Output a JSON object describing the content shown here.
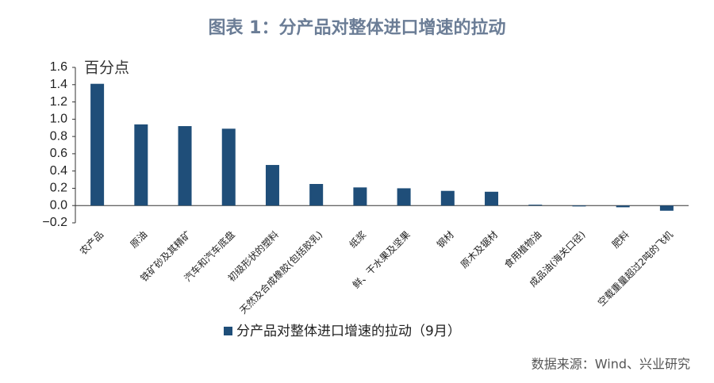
{
  "chart_data": {
    "type": "bar",
    "title": "图表 1：分产品对整体进口增速的拉动",
    "y_unit": "百分点",
    "categories": [
      "农产品",
      "原油",
      "铁矿砂及其精矿",
      "汽车和汽车底盘",
      "初级形状的塑料",
      "天然及合成橡胶(包括胶乳)",
      "纸浆",
      "鲜、干水果及坚果",
      "钢材",
      "原木及锯材",
      "食用植物油",
      "成品油(海关口径)",
      "肥料",
      "空载重量超过2吨的飞机"
    ],
    "series": [
      {
        "name": "分产品对整体进口增速的拉动（9月）",
        "color": "#1f4e79",
        "values": [
          1.41,
          0.94,
          0.92,
          0.89,
          0.47,
          0.25,
          0.21,
          0.2,
          0.17,
          0.16,
          0.01,
          -0.01,
          -0.02,
          -0.06
        ]
      }
    ],
    "ylim": [
      -0.2,
      1.6
    ],
    "yticks": [
      {
        "value": -0.2,
        "label": "−0.2"
      },
      {
        "value": 0,
        "label": "0.0"
      },
      0.2,
      0.4,
      0.6,
      0.8,
      {
        "value": 1,
        "label": "1.0"
      },
      1.2,
      1.4,
      1.6
    ],
    "source": "数据来源：Wind、兴业研究"
  }
}
